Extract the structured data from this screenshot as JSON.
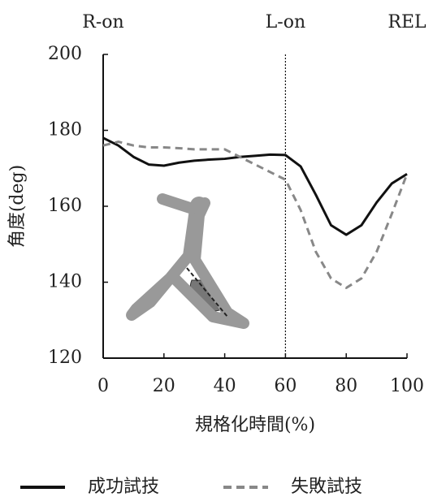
{
  "chart_data": {
    "type": "line",
    "x_label": "規格化時間(%)",
    "y_label": "角度(deg)",
    "x": [
      0,
      5,
      10,
      15,
      20,
      25,
      30,
      35,
      40,
      45,
      50,
      55,
      60,
      65,
      70,
      75,
      80,
      85,
      90,
      95,
      100
    ],
    "series": [
      {
        "name": "成功試技",
        "color": "#111111",
        "dash": "solid",
        "values": [
          178,
          176,
          173,
          171,
          170.7,
          171.5,
          172,
          172.3,
          172.5,
          173,
          173.3,
          173.6,
          173.5,
          170.5,
          163,
          155,
          152.5,
          155,
          161,
          166,
          168.5
        ]
      },
      {
        "name": "失敗試技",
        "color": "#888888",
        "dash": "dashed",
        "values": [
          176,
          177,
          176,
          175.5,
          175.5,
          175.3,
          175,
          175,
          175,
          173,
          171,
          169,
          167,
          159,
          148,
          141,
          138.5,
          141,
          148,
          158,
          168.5
        ]
      }
    ],
    "annotations": [
      {
        "text": "R-on",
        "x": 0
      },
      {
        "text": "L-on",
        "x": 60,
        "line": true
      },
      {
        "text": "REL",
        "x": 100
      }
    ],
    "xlim": [
      0,
      100
    ],
    "xticks": [
      0,
      20,
      40,
      60,
      80,
      100
    ],
    "ylim": [
      120,
      200
    ],
    "yticks": [
      120,
      140,
      160,
      180,
      200
    ],
    "legend": "bottom"
  }
}
